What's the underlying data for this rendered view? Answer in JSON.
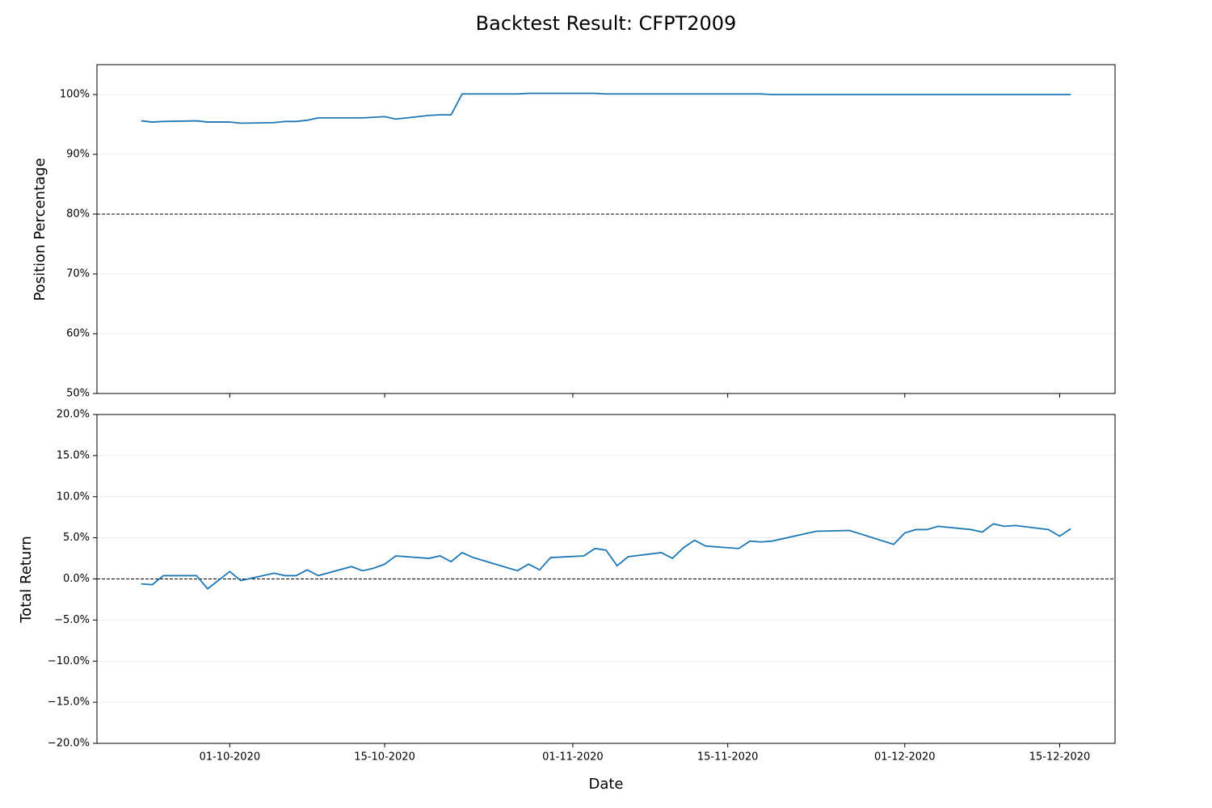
{
  "chart_data": [
    {
      "type": "line",
      "title": "Backtest Result: CFPT2009",
      "ylabel": "Position Percentage",
      "x": [
        "23-09-2020",
        "24-09-2020",
        "25-09-2020",
        "28-09-2020",
        "29-09-2020",
        "01-10-2020",
        "02-10-2020",
        "05-10-2020",
        "06-10-2020",
        "07-10-2020",
        "08-10-2020",
        "09-10-2020",
        "12-10-2020",
        "13-10-2020",
        "14-10-2020",
        "15-10-2020",
        "16-10-2020",
        "19-10-2020",
        "20-10-2020",
        "21-10-2020",
        "22-10-2020",
        "23-10-2020",
        "27-10-2020",
        "28-10-2020",
        "29-10-2020",
        "30-10-2020",
        "02-11-2020",
        "03-11-2020",
        "04-11-2020",
        "05-11-2020",
        "06-11-2020",
        "09-11-2020",
        "10-11-2020",
        "11-11-2020",
        "12-11-2020",
        "13-11-2020",
        "16-11-2020",
        "17-11-2020",
        "18-11-2020",
        "19-11-2020",
        "23-11-2020",
        "26-11-2020",
        "30-11-2020",
        "01-12-2020",
        "02-12-2020",
        "03-12-2020",
        "04-12-2020",
        "07-12-2020",
        "08-12-2020",
        "09-12-2020",
        "10-12-2020",
        "11-12-2020",
        "14-12-2020",
        "15-12-2020",
        "16-12-2020"
      ],
      "values": [
        95.6,
        95.4,
        95.5,
        95.6,
        95.4,
        95.4,
        95.2,
        95.3,
        95.5,
        95.5,
        95.7,
        96.1,
        96.1,
        96.1,
        96.2,
        96.3,
        95.9,
        96.5,
        96.6,
        96.6,
        100.1,
        100.1,
        100.1,
        100.2,
        100.2,
        100.2,
        100.2,
        100.2,
        100.1,
        100.1,
        100.1,
        100.1,
        100.1,
        100.1,
        100.1,
        100.1,
        100.1,
        100.1,
        100.1,
        100.0,
        100.0,
        100.0,
        100.0,
        100.0,
        100.0,
        100.0,
        100.0,
        100.0,
        100.0,
        100.0,
        100.0,
        100.0,
        100.0,
        100.0,
        100.0
      ],
      "color": "#1f77b4",
      "xlim": [
        "19-09-2020",
        "20-12-2020"
      ],
      "ylim": [
        50,
        105
      ],
      "yticks": [
        {
          "value": 50,
          "label": "50%"
        },
        {
          "value": 60,
          "label": "60%"
        },
        {
          "value": 70,
          "label": "70%"
        },
        {
          "value": 80,
          "label": "80%"
        },
        {
          "value": 90,
          "label": "90%"
        },
        {
          "value": 100,
          "label": "100%"
        }
      ],
      "hline": 80,
      "grid": true
    },
    {
      "type": "line",
      "xlabel": "Date",
      "ylabel": "Total Return",
      "x": [
        "23-09-2020",
        "24-09-2020",
        "25-09-2020",
        "28-09-2020",
        "29-09-2020",
        "01-10-2020",
        "02-10-2020",
        "05-10-2020",
        "06-10-2020",
        "07-10-2020",
        "08-10-2020",
        "09-10-2020",
        "12-10-2020",
        "13-10-2020",
        "14-10-2020",
        "15-10-2020",
        "16-10-2020",
        "19-10-2020",
        "20-10-2020",
        "21-10-2020",
        "22-10-2020",
        "23-10-2020",
        "27-10-2020",
        "28-10-2020",
        "29-10-2020",
        "30-10-2020",
        "02-11-2020",
        "03-11-2020",
        "04-11-2020",
        "05-11-2020",
        "06-11-2020",
        "09-11-2020",
        "10-11-2020",
        "11-11-2020",
        "12-11-2020",
        "13-11-2020",
        "16-11-2020",
        "17-11-2020",
        "18-11-2020",
        "19-11-2020",
        "23-11-2020",
        "26-11-2020",
        "30-11-2020",
        "01-12-2020",
        "02-12-2020",
        "03-12-2020",
        "04-12-2020",
        "07-12-2020",
        "08-12-2020",
        "09-12-2020",
        "10-12-2020",
        "11-12-2020",
        "14-12-2020",
        "15-12-2020",
        "16-12-2020"
      ],
      "values": [
        -0.6,
        -0.7,
        0.4,
        0.4,
        -1.2,
        0.9,
        -0.2,
        0.7,
        0.4,
        0.4,
        1.1,
        0.4,
        1.5,
        1.0,
        1.3,
        1.8,
        2.8,
        2.5,
        2.8,
        2.1,
        3.2,
        2.6,
        1.0,
        1.8,
        1.1,
        2.6,
        2.8,
        3.7,
        3.5,
        1.6,
        2.7,
        3.2,
        2.5,
        3.8,
        4.7,
        4.0,
        3.7,
        4.6,
        4.5,
        4.6,
        5.8,
        5.9,
        4.2,
        5.6,
        6.0,
        6.0,
        6.4,
        6.0,
        5.7,
        6.7,
        6.4,
        6.5,
        6.0,
        5.2,
        6.1
      ],
      "color": "#1f77b4",
      "xlim": [
        "19-09-2020",
        "20-12-2020"
      ],
      "ylim": [
        -20,
        20
      ],
      "xticks": [
        "01-10-2020",
        "15-10-2020",
        "01-11-2020",
        "15-11-2020",
        "01-12-2020",
        "15-12-2020"
      ],
      "yticks": [
        {
          "value": -20,
          "label": "−20.0%"
        },
        {
          "value": -15,
          "label": "−15.0%"
        },
        {
          "value": -10,
          "label": "−10.0%"
        },
        {
          "value": -5,
          "label": "−5.0%"
        },
        {
          "value": 0,
          "label": "0.0%"
        },
        {
          "value": 5,
          "label": "5.0%"
        },
        {
          "value": 10,
          "label": "10.0%"
        },
        {
          "value": 15,
          "label": "15.0%"
        },
        {
          "value": 20,
          "label": "20.0%"
        }
      ],
      "hline": 0,
      "grid": true
    }
  ]
}
